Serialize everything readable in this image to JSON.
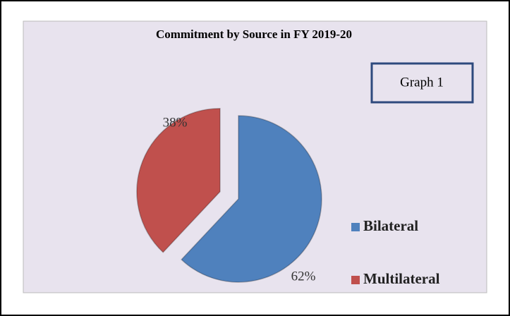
{
  "chart_data": {
    "type": "pie",
    "title": "Commitment by Source in FY 2019-20",
    "annotation": "Graph 1",
    "categories": [
      "Bilateral",
      "Multilateral"
    ],
    "values": [
      62,
      38
    ],
    "value_labels": [
      "62%",
      "38%"
    ],
    "colors": [
      "#4f81bd",
      "#c0504d"
    ],
    "legend": "right"
  }
}
